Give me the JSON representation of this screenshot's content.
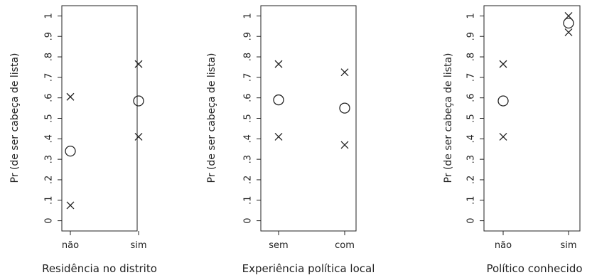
{
  "chart_data": [
    {
      "type": "scatter",
      "title": "",
      "xlabel": "Residência no distrito",
      "ylabel": "Pr (de ser cabeça de lista)",
      "categories": [
        "não",
        "sim"
      ],
      "ylim": [
        -0.05,
        1.05
      ],
      "yticks": [
        0,
        0.1,
        0.2,
        0.3,
        0.4,
        0.5,
        0.6,
        0.7,
        0.8,
        0.9,
        1
      ],
      "ytick_labels": [
        "0",
        ".1",
        ".2",
        ".3",
        ".4",
        ".5",
        ".6",
        ".7",
        ".8",
        ".9",
        "1"
      ],
      "estimate": [
        0.34,
        0.585
      ],
      "lower": [
        0.075,
        0.41
      ],
      "upper": [
        0.605,
        0.765
      ],
      "markers": {
        "estimate": "circle",
        "bounds": "cross"
      }
    },
    {
      "type": "scatter",
      "title": "",
      "xlabel": "Experiência política local",
      "ylabel": "Pr (de ser cabeça de lista)",
      "categories": [
        "sem",
        "com"
      ],
      "ylim": [
        -0.05,
        1.05
      ],
      "yticks": [
        0,
        0.1,
        0.2,
        0.3,
        0.4,
        0.5,
        0.6,
        0.7,
        0.8,
        0.9,
        1
      ],
      "ytick_labels": [
        "0",
        ".1",
        ".2",
        ".3",
        ".4",
        ".5",
        ".6",
        ".7",
        ".8",
        ".9",
        "1"
      ],
      "estimate": [
        0.59,
        0.55
      ],
      "lower": [
        0.41,
        0.37
      ],
      "upper": [
        0.765,
        0.725
      ],
      "markers": {
        "estimate": "circle",
        "bounds": "cross"
      }
    },
    {
      "type": "scatter",
      "title": "",
      "xlabel": "Político conhecido",
      "ylabel": "Pr (de ser cabeça de lista)",
      "categories": [
        "não",
        "sim"
      ],
      "ylim": [
        -0.05,
        1.05
      ],
      "yticks": [
        0,
        0.1,
        0.2,
        0.3,
        0.4,
        0.5,
        0.6,
        0.7,
        0.8,
        0.9,
        1
      ],
      "ytick_labels": [
        "0",
        ".1",
        ".2",
        ".3",
        ".4",
        ".5",
        ".6",
        ".7",
        ".8",
        ".9",
        "1"
      ],
      "estimate": [
        0.585,
        0.965
      ],
      "lower": [
        0.41,
        0.92
      ],
      "upper": [
        0.765,
        1.0
      ],
      "markers": {
        "estimate": "circle",
        "bounds": "cross"
      }
    }
  ],
  "colors": {
    "ink": "#222222",
    "background": "#ffffff"
  }
}
